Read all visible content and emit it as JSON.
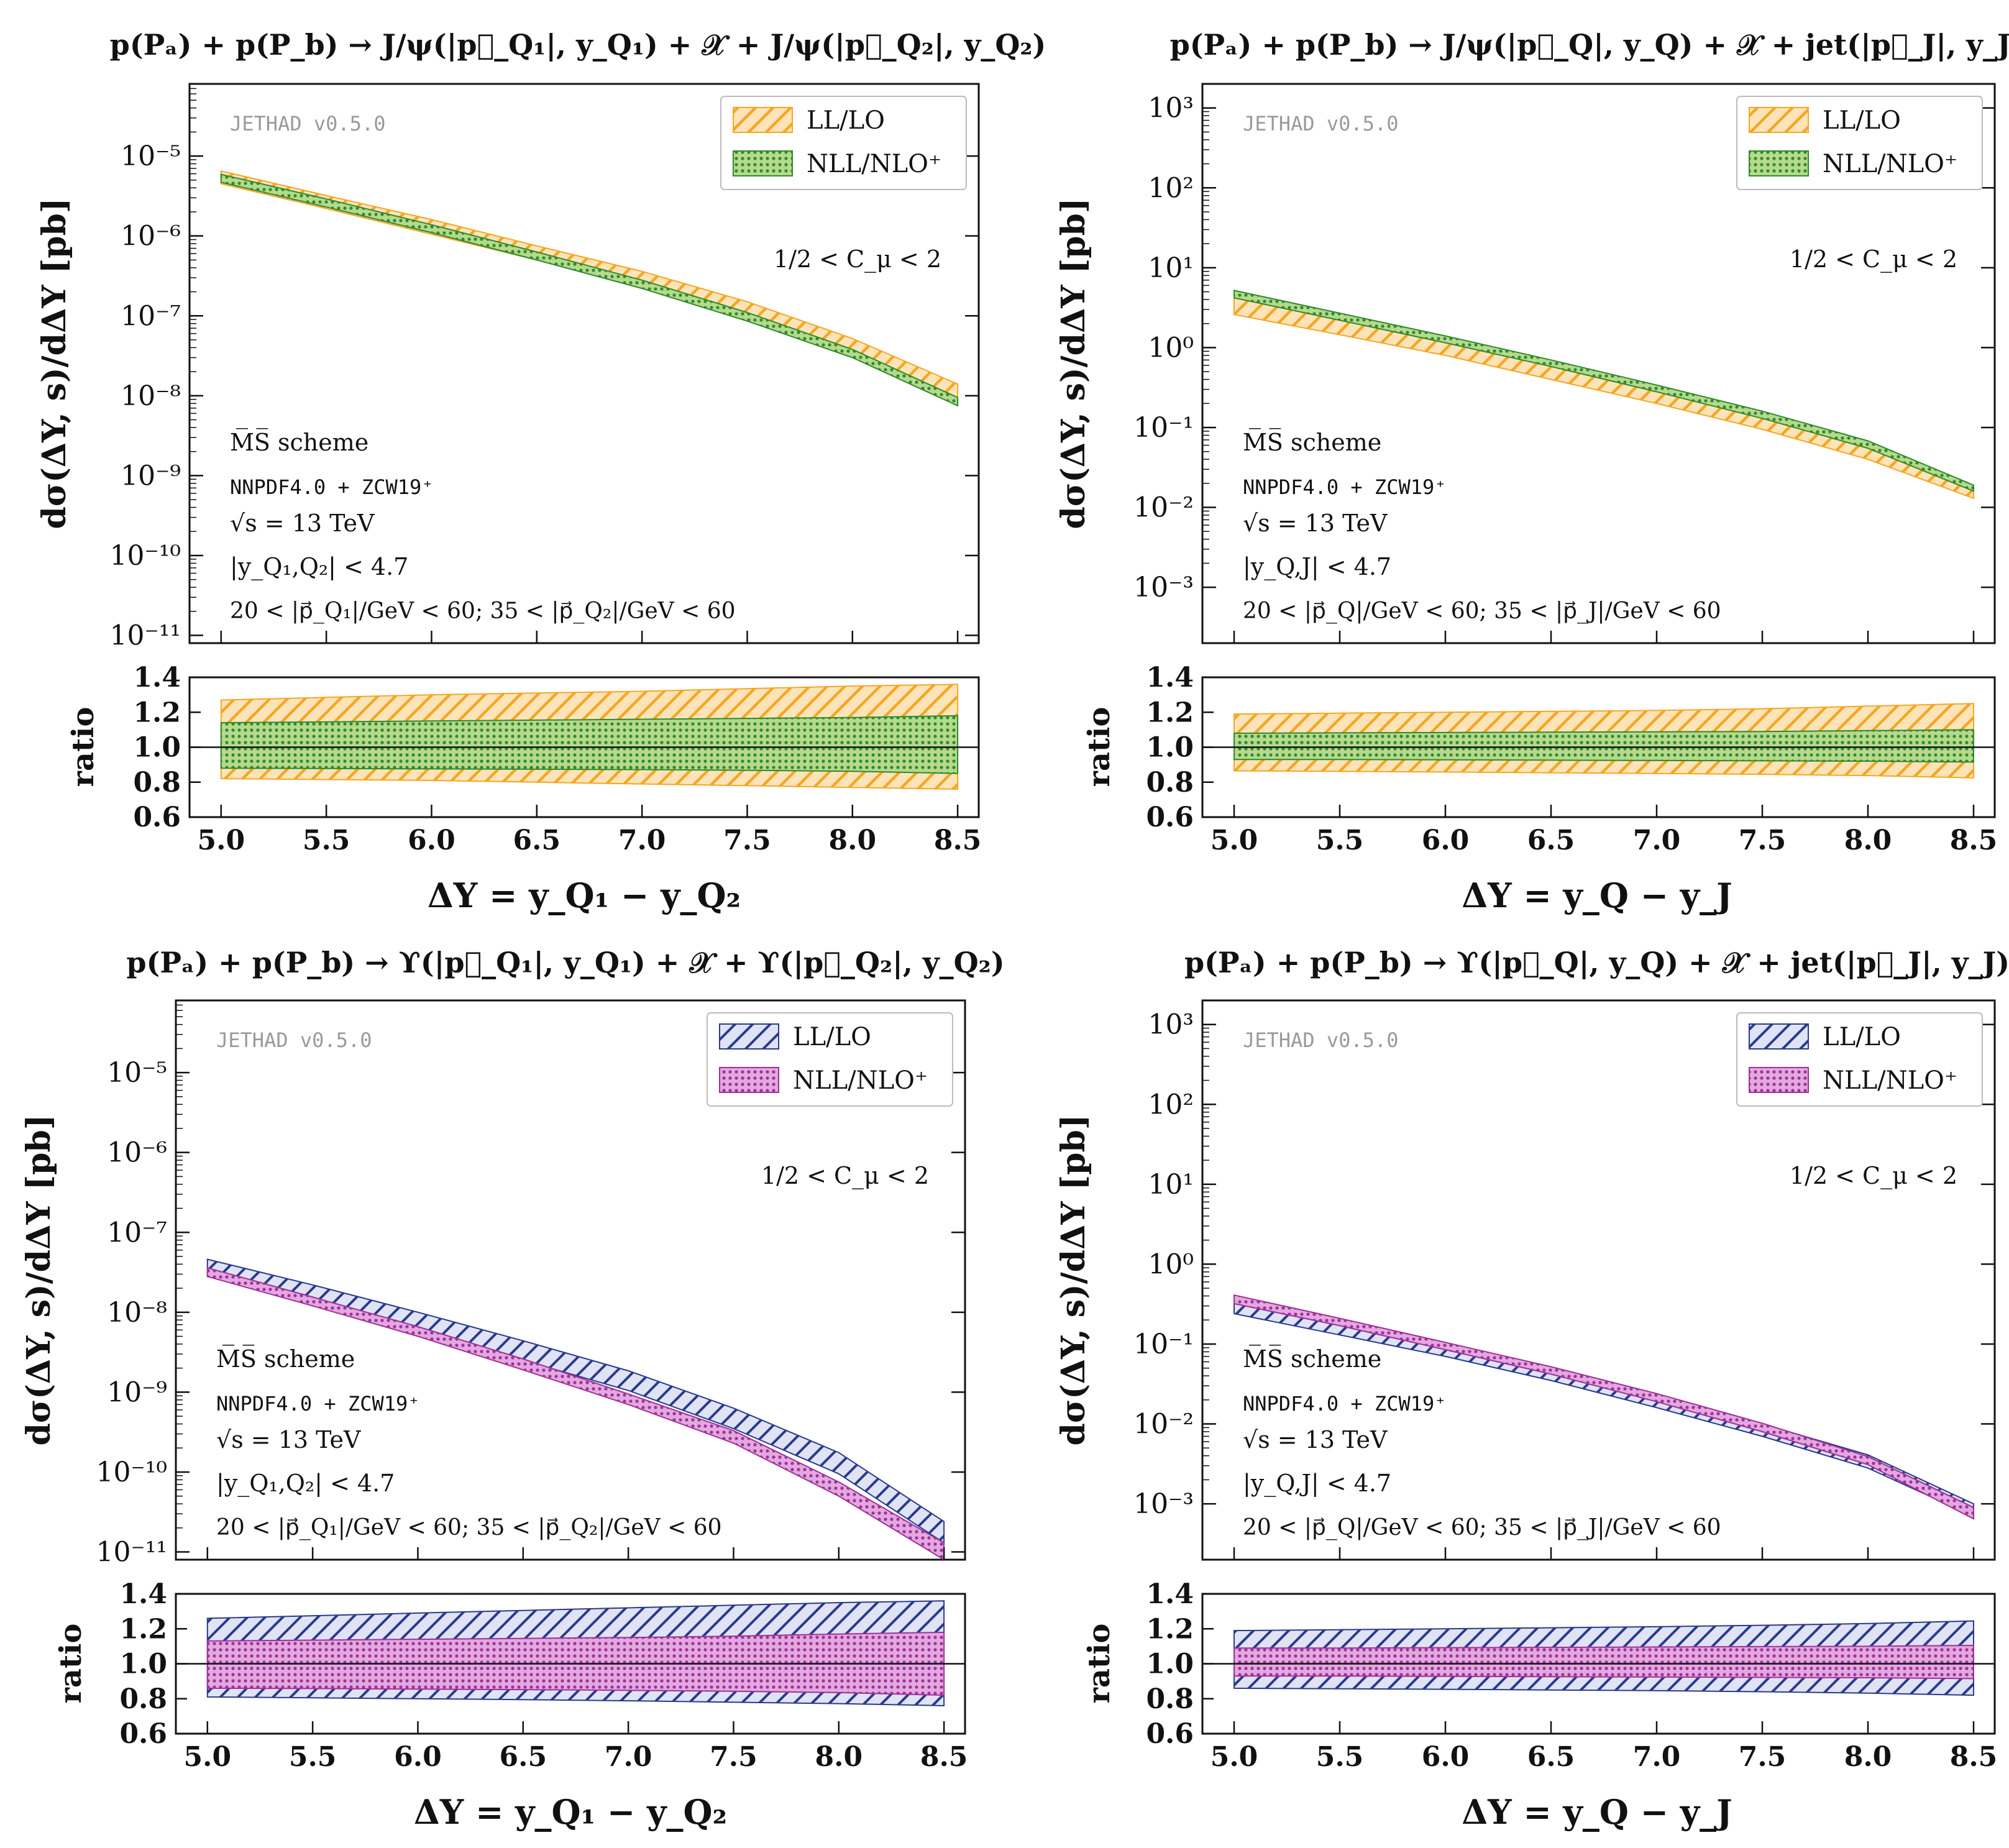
{
  "panels": [
    {
      "title": "p(Pₐ) + p(P_b) → J/ψ(|p⃗_Q₁|, y_Q₁) + 𝒳 + J/ψ(|p⃗_Q₂|, y_Q₂)",
      "watermark": "JETHAD v0.5.0",
      "legend": [
        "LL/LO",
        "NLL/NLO⁺"
      ],
      "scale_note": "1/2 < C_μ < 2",
      "info": [
        "M̅S̅ scheme",
        "NNPDF4.0 + ZCW19⁺",
        "√s = 13 TeV",
        "|y_Q₁,Q₂| < 4.7",
        "20 < |p⃗_Q₁|/GeV < 60;  35 < |p⃗_Q₂|/GeV < 60"
      ],
      "ylabel": "dσ(ΔY, s)/dΔY [pb]",
      "ratio_label": "ratio",
      "xlabel": "ΔY = y_Q₁ − y_Q₂",
      "colors": {
        "ll": "#f5a623",
        "nll": "#2e8b2e",
        "nll_fill": "#b6d98c"
      }
    },
    {
      "title": "p(Pₐ) + p(P_b) → J/ψ(|p⃗_Q|, y_Q) + 𝒳 + jet(|p⃗_J|, y_J)",
      "watermark": "JETHAD v0.5.0",
      "legend": [
        "LL/LO",
        "NLL/NLO⁺"
      ],
      "scale_note": "1/2 < C_μ < 2",
      "info": [
        "M̅S̅ scheme",
        "NNPDF4.0 + ZCW19⁺",
        "√s = 13 TeV",
        "|y_Q,J| < 4.7",
        "20 < |p⃗_Q|/GeV < 60;  35 < |p⃗_J|/GeV < 60"
      ],
      "ylabel": "dσ(ΔY, s)/dΔY [pb]",
      "ratio_label": "ratio",
      "xlabel": "ΔY = y_Q − y_J",
      "colors": {
        "ll": "#f5a623",
        "nll": "#2e8b2e",
        "nll_fill": "#b6d98c"
      }
    },
    {
      "title": "p(Pₐ) + p(P_b) → ϒ(|p⃗_Q₁|, y_Q₁) + 𝒳 + ϒ(|p⃗_Q₂|, y_Q₂)",
      "watermark": "JETHAD v0.5.0",
      "legend": [
        "LL/LO",
        "NLL/NLO⁺"
      ],
      "scale_note": "1/2 < C_μ < 2",
      "info": [
        "M̅S̅ scheme",
        "NNPDF4.0 + ZCW19⁺",
        "√s = 13 TeV",
        "|y_Q₁,Q₂| < 4.7",
        "20 < |p⃗_Q₁|/GeV < 60;  35 < |p⃗_Q₂|/GeV < 60"
      ],
      "ylabel": "dσ(ΔY, s)/dΔY [pb]",
      "ratio_label": "ratio",
      "xlabel": "ΔY = y_Q₁ − y_Q₂",
      "colors": {
        "ll": "#2a3a8c",
        "nll": "#a0309a",
        "nll_fill": "#e2a9df"
      }
    },
    {
      "title": "p(Pₐ) + p(P_b) → ϒ(|p⃗_Q|, y_Q) + 𝒳 + jet(|p⃗_J|, y_J)",
      "watermark": "JETHAD v0.5.0",
      "legend": [
        "LL/LO",
        "NLL/NLO⁺"
      ],
      "scale_note": "1/2 < C_μ < 2",
      "info": [
        "M̅S̅ scheme",
        "NNPDF4.0 + ZCW19⁺",
        "√s = 13 TeV",
        "|y_Q,J| < 4.7",
        "20 < |p⃗_Q|/GeV < 60;  35 < |p⃗_J|/GeV < 60"
      ],
      "ylabel": "dσ(ΔY, s)/dΔY [pb]",
      "ratio_label": "ratio",
      "xlabel": "ΔY = y_Q − y_J",
      "colors": {
        "ll": "#2a3a8c",
        "nll": "#a0309a",
        "nll_fill": "#e2a9df"
      }
    }
  ],
  "chart_data": [
    {
      "type": "area",
      "title": "J/ψ + J/ψ",
      "x": [
        5.0,
        5.5,
        6.0,
        6.5,
        7.0,
        7.5,
        8.0,
        8.5
      ],
      "xlim": [
        4.85,
        8.6
      ],
      "xticks": [
        5.0,
        5.5,
        6.0,
        6.5,
        7.0,
        7.5,
        8.0,
        8.5
      ],
      "main": {
        "yscale": "log",
        "ylim": [
          8e-12,
          8e-05
        ],
        "yticks": [
          1e-11,
          1e-10,
          1e-09,
          1e-08,
          1e-07,
          1e-06,
          1e-05
        ],
        "ytick_labels": [
          "10⁻¹¹",
          "10⁻¹⁰",
          "10⁻⁹",
          "10⁻⁸",
          "10⁻⁷",
          "10⁻⁶",
          "10⁻⁵"
        ],
        "series": [
          {
            "name": "LL/LO",
            "low": [
              4.5e-06,
              2.2e-06,
              1.05e-06,
              5e-07,
              2.5e-07,
              1e-07,
              3.5e-08,
              8.5e-09
            ],
            "high": [
              6.5e-06,
              3.2e-06,
              1.6e-06,
              7.5e-07,
              3.6e-07,
              1.5e-07,
              5.2e-08,
              1.4e-08
            ]
          },
          {
            "name": "NLL/NLO⁺",
            "low": [
              4.7e-06,
              2.3e-06,
              1.1e-06,
              5e-07,
              2.2e-07,
              8.6e-08,
              3e-08,
              7.5e-09
            ],
            "high": [
              5.9e-06,
              2.9e-06,
              1.38e-06,
              6.3e-07,
              2.8e-07,
              1.1e-07,
              3.8e-08,
              9.5e-09
            ]
          }
        ]
      },
      "ratio": {
        "ylim": [
          0.6,
          1.4
        ],
        "yticks": [
          0.6,
          0.8,
          1.0,
          1.2,
          1.4
        ],
        "series": [
          {
            "name": "LL/LO",
            "low": [
              0.82,
              0.815,
              0.81,
              0.8,
              0.79,
              0.78,
              0.77,
              0.76
            ],
            "high": [
              1.27,
              1.285,
              1.3,
              1.31,
              1.32,
              1.335,
              1.35,
              1.36
            ]
          },
          {
            "name": "NLL/NLO⁺",
            "low": [
              0.88,
              0.878,
              0.876,
              0.874,
              0.872,
              0.868,
              0.862,
              0.85
            ],
            "high": [
              1.14,
              1.145,
              1.15,
              1.155,
              1.16,
              1.165,
              1.17,
              1.18
            ]
          }
        ]
      }
    },
    {
      "type": "area",
      "title": "J/ψ + jet",
      "x": [
        5.0,
        5.5,
        6.0,
        6.5,
        7.0,
        7.5,
        8.0,
        8.5
      ],
      "xlim": [
        4.85,
        8.6
      ],
      "xticks": [
        5.0,
        5.5,
        6.0,
        6.5,
        7.0,
        7.5,
        8.0,
        8.5
      ],
      "main": {
        "yscale": "log",
        "ylim": [
          0.0002,
          2000
        ],
        "yticks": [
          0.001,
          0.01,
          0.1,
          1,
          10,
          100,
          1000
        ],
        "ytick_labels": [
          "10⁻³",
          "10⁻²",
          "10⁻¹",
          "10⁰",
          "10¹",
          "10²",
          "10³"
        ],
        "series": [
          {
            "name": "LL/LO",
            "low": [
              2.6,
              1.45,
              0.8,
              0.4,
              0.2,
              0.095,
              0.04,
              0.013
            ],
            "high": [
              4.2,
              2.3,
              1.25,
              0.65,
              0.32,
              0.15,
              0.062,
              0.018
            ]
          },
          {
            "name": "NLL/NLO⁺",
            "low": [
              4.2,
              2.2,
              1.15,
              0.58,
              0.28,
              0.13,
              0.055,
              0.016
            ],
            "high": [
              5.2,
              2.7,
              1.4,
              0.7,
              0.34,
              0.16,
              0.068,
              0.019
            ]
          }
        ]
      },
      "ratio": {
        "ylim": [
          0.6,
          1.4
        ],
        "yticks": [
          0.6,
          0.8,
          1.0,
          1.2,
          1.4
        ],
        "series": [
          {
            "name": "LL/LO",
            "low": [
              0.865,
              0.862,
              0.858,
              0.854,
              0.85,
              0.845,
              0.838,
              0.825
            ],
            "high": [
              1.19,
              1.195,
              1.2,
              1.205,
              1.21,
              1.22,
              1.235,
              1.25
            ]
          },
          {
            "name": "NLL/NLO⁺",
            "low": [
              0.93,
              0.93,
              0.928,
              0.926,
              0.924,
              0.922,
              0.92,
              0.915
            ],
            "high": [
              1.08,
              1.082,
              1.084,
              1.086,
              1.088,
              1.09,
              1.095,
              1.1
            ]
          }
        ]
      }
    },
    {
      "type": "area",
      "title": "ϒ + ϒ",
      "x": [
        5.0,
        5.5,
        6.0,
        6.5,
        7.0,
        7.5,
        8.0,
        8.5
      ],
      "xlim": [
        4.85,
        8.6
      ],
      "xticks": [
        5.0,
        5.5,
        6.0,
        6.5,
        7.0,
        7.5,
        8.0,
        8.5
      ],
      "main": {
        "yscale": "log",
        "ylim": [
          8e-12,
          8e-05
        ],
        "yticks": [
          1e-11,
          1e-10,
          1e-09,
          1e-08,
          1e-07,
          1e-06,
          1e-05
        ],
        "ytick_labels": [
          "10⁻¹¹",
          "10⁻¹⁰",
          "10⁻⁹",
          "10⁻⁸",
          "10⁻⁷",
          "10⁻⁶",
          "10⁻⁵"
        ],
        "series": [
          {
            "name": "LL/LO",
            "low": [
              2.8e-08,
              1.3e-08,
              5.8e-09,
              2.5e-09,
              1.05e-09,
              3.5e-10,
              9.5e-11,
              1.3e-11
            ],
            "high": [
              4.6e-08,
              2.2e-08,
              1e-08,
              4.4e-09,
              1.85e-09,
              6.3e-10,
              1.75e-10,
              2.4e-11
            ]
          },
          {
            "name": "NLL/NLO⁺",
            "low": [
              2.8e-08,
              1.2e-08,
              5e-09,
              1.9e-09,
              7e-10,
              2.3e-10,
              5e-11,
              8e-12
            ],
            "high": [
              3.6e-08,
              1.55e-08,
              6.6e-09,
              2.6e-09,
              9.5e-10,
              3.3e-10,
              7.5e-11,
              1.3e-11
            ]
          }
        ]
      },
      "ratio": {
        "ylim": [
          0.6,
          1.4
        ],
        "yticks": [
          0.6,
          0.8,
          1.0,
          1.2,
          1.4
        ],
        "series": [
          {
            "name": "LL/LO",
            "low": [
              0.81,
              0.805,
              0.8,
              0.795,
              0.788,
              0.78,
              0.772,
              0.76
            ],
            "high": [
              1.26,
              1.275,
              1.29,
              1.305,
              1.32,
              1.335,
              1.35,
              1.36
            ]
          },
          {
            "name": "NLL/NLO⁺",
            "low": [
              0.86,
              0.858,
              0.855,
              0.852,
              0.848,
              0.843,
              0.835,
              0.82
            ],
            "high": [
              1.13,
              1.135,
              1.14,
              1.145,
              1.15,
              1.158,
              1.17,
              1.18
            ]
          }
        ]
      }
    },
    {
      "type": "area",
      "title": "ϒ + jet",
      "x": [
        5.0,
        5.5,
        6.0,
        6.5,
        7.0,
        7.5,
        8.0,
        8.5
      ],
      "xlim": [
        4.85,
        8.6
      ],
      "xticks": [
        5.0,
        5.5,
        6.0,
        6.5,
        7.0,
        7.5,
        8.0,
        8.5
      ],
      "main": {
        "yscale": "log",
        "ylim": [
          0.0002,
          2000
        ],
        "yticks": [
          0.001,
          0.01,
          0.1,
          1,
          10,
          100,
          1000
        ],
        "ytick_labels": [
          "10⁻³",
          "10⁻²",
          "10⁻¹",
          "10⁰",
          "10¹",
          "10²",
          "10³"
        ],
        "series": [
          {
            "name": "LL/LO",
            "low": [
              0.24,
              0.13,
              0.07,
              0.035,
              0.016,
              0.007,
              0.0028,
              0.0007
            ],
            "high": [
              0.33,
              0.18,
              0.098,
              0.05,
              0.023,
              0.01,
              0.0041,
              0.001
            ]
          },
          {
            "name": "NLL/NLO⁺",
            "low": [
              0.32,
              0.17,
              0.085,
              0.042,
              0.019,
              0.008,
              0.0031,
              0.00065
            ],
            "high": [
              0.41,
              0.21,
              0.105,
              0.052,
              0.024,
              0.0102,
              0.0039,
              0.0009
            ]
          }
        ]
      },
      "ratio": {
        "ylim": [
          0.6,
          1.4
        ],
        "yticks": [
          0.6,
          0.8,
          1.0,
          1.2,
          1.4
        ],
        "series": [
          {
            "name": "LL/LO",
            "low": [
              0.86,
              0.857,
              0.854,
              0.85,
              0.846,
              0.84,
              0.832,
              0.82
            ],
            "high": [
              1.19,
              1.195,
              1.2,
              1.206,
              1.212,
              1.22,
              1.23,
              1.245
            ]
          },
          {
            "name": "NLL/NLO⁺",
            "low": [
              0.93,
              0.93,
              0.928,
              0.926,
              0.924,
              0.922,
              0.92,
              0.915
            ],
            "high": [
              1.09,
              1.09,
              1.092,
              1.094,
              1.096,
              1.098,
              1.1,
              1.105
            ]
          }
        ]
      }
    }
  ]
}
